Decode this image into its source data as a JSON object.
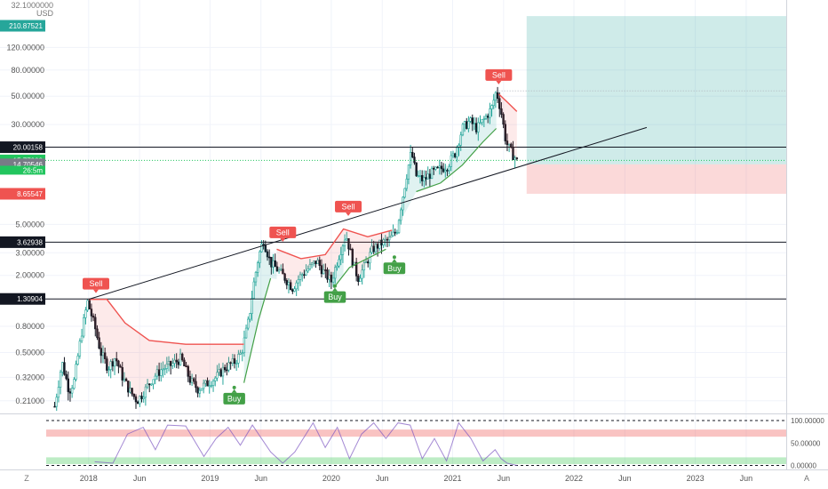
{
  "currency_header": {
    "line1": "32.1000000",
    "line2": "USD"
  },
  "chart_data": {
    "type": "line",
    "scale": "log",
    "ylim": [
      0.17,
      260
    ],
    "price_ticks": [
      {
        "value": 120,
        "label": "120.00000"
      },
      {
        "value": 80,
        "label": "80.00000"
      },
      {
        "value": 50,
        "label": "50.00000"
      },
      {
        "value": 30,
        "label": "30.00000"
      },
      {
        "value": 5,
        "label": "5.00000"
      },
      {
        "value": 3,
        "label": "3.00000"
      },
      {
        "value": 2,
        "label": "2.00000"
      },
      {
        "value": 0.8,
        "label": "0.80000"
      },
      {
        "value": 0.5,
        "label": "0.50000"
      },
      {
        "value": 0.32,
        "label": "0.32000"
      },
      {
        "value": 0.21,
        "label": "0.21000"
      }
    ],
    "price_badges": [
      {
        "value": 210.87521,
        "label": "210.87521",
        "color": "#26a69a"
      },
      {
        "value": 20.00158,
        "label": "20.00158",
        "color": "#131722"
      },
      {
        "value": 15.77,
        "label": "15.77000",
        "color": "#22c55e"
      },
      {
        "value": 14.70546,
        "label": "14.70546",
        "color": "#787b86"
      },
      {
        "value": 8.65547,
        "label": "8.65547",
        "color": "#ef5350"
      },
      {
        "value": 3.62938,
        "label": "3.62938",
        "color": "#131722"
      },
      {
        "value": 1.30904,
        "label": "1.30904",
        "color": "#131722"
      }
    ],
    "countdown": "26:5m",
    "horizontal_levels": [
      20.00158,
      3.62938,
      1.30904
    ],
    "x_labels": [
      {
        "t": 2018.0,
        "label": "2018"
      },
      {
        "t": 2018.42,
        "label": "Jun"
      },
      {
        "t": 2019.0,
        "label": "2019"
      },
      {
        "t": 2019.42,
        "label": "Jun"
      },
      {
        "t": 2020.0,
        "label": "2020"
      },
      {
        "t": 2020.42,
        "label": "Jun"
      },
      {
        "t": 2021.0,
        "label": "2021"
      },
      {
        "t": 2021.42,
        "label": "Jun"
      },
      {
        "t": 2022.0,
        "label": "2022"
      },
      {
        "t": 2022.42,
        "label": "Jun"
      },
      {
        "t": 2023.0,
        "label": "2023"
      },
      {
        "t": 2023.42,
        "label": "Jun"
      }
    ],
    "price_series": [
      [
        2017.72,
        0.19
      ],
      [
        2017.78,
        0.42
      ],
      [
        2017.84,
        0.25
      ],
      [
        2017.88,
        0.3
      ],
      [
        2017.94,
        0.7
      ],
      [
        2017.99,
        1.25
      ],
      [
        2018.05,
        0.8
      ],
      [
        2018.1,
        0.5
      ],
      [
        2018.16,
        0.38
      ],
      [
        2018.22,
        0.46
      ],
      [
        2018.28,
        0.32
      ],
      [
        2018.34,
        0.25
      ],
      [
        2018.4,
        0.21
      ],
      [
        2018.46,
        0.25
      ],
      [
        2018.52,
        0.31
      ],
      [
        2018.6,
        0.37
      ],
      [
        2018.68,
        0.4
      ],
      [
        2018.76,
        0.45
      ],
      [
        2018.84,
        0.3
      ],
      [
        2018.9,
        0.26
      ],
      [
        2018.96,
        0.28
      ],
      [
        2019.05,
        0.32
      ],
      [
        2019.12,
        0.38
      ],
      [
        2019.2,
        0.42
      ],
      [
        2019.26,
        0.5
      ],
      [
        2019.32,
        0.9
      ],
      [
        2019.36,
        1.7
      ],
      [
        2019.4,
        2.8
      ],
      [
        2019.44,
        3.8
      ],
      [
        2019.5,
        2.5
      ],
      [
        2019.56,
        2.2
      ],
      [
        2019.62,
        1.9
      ],
      [
        2019.68,
        1.6
      ],
      [
        2019.75,
        2.0
      ],
      [
        2019.82,
        2.3
      ],
      [
        2019.88,
        2.6
      ],
      [
        2019.94,
        2.1
      ],
      [
        2020.0,
        1.8
      ],
      [
        2020.06,
        2.8
      ],
      [
        2020.12,
        4.2
      ],
      [
        2020.18,
        2.5
      ],
      [
        2020.22,
        1.9
      ],
      [
        2020.28,
        2.4
      ],
      [
        2020.34,
        3.2
      ],
      [
        2020.42,
        3.6
      ],
      [
        2020.48,
        3.8
      ],
      [
        2020.54,
        4.5
      ],
      [
        2020.58,
        7.5
      ],
      [
        2020.62,
        12.0
      ],
      [
        2020.66,
        18.5
      ],
      [
        2020.7,
        12.0
      ],
      [
        2020.76,
        11.0
      ],
      [
        2020.82,
        12.5
      ],
      [
        2020.9,
        13.5
      ],
      [
        2020.96,
        14.5
      ],
      [
        2021.02,
        18.0
      ],
      [
        2021.08,
        28.0
      ],
      [
        2021.14,
        32.0
      ],
      [
        2021.2,
        28.0
      ],
      [
        2021.26,
        33.0
      ],
      [
        2021.32,
        40.0
      ],
      [
        2021.36,
        55.0
      ],
      [
        2021.4,
        38.0
      ],
      [
        2021.44,
        22.0
      ],
      [
        2021.48,
        18.5
      ],
      [
        2021.53,
        15.77
      ]
    ],
    "trend_line": [
      [
        2018.0,
        1.3
      ],
      [
        2022.6,
        28.5
      ]
    ],
    "supertrend_sell": [
      [
        2018.0,
        1.3
      ],
      [
        2018.15,
        1.3
      ],
      [
        2018.3,
        0.85
      ],
      [
        2018.5,
        0.62
      ],
      [
        2018.8,
        0.58
      ],
      [
        2019.28,
        0.58
      ],
      [
        2019.55,
        3.2
      ],
      [
        2019.75,
        2.7
      ],
      [
        2019.95,
        2.9
      ],
      [
        2020.1,
        4.6
      ],
      [
        2020.3,
        4.0
      ],
      [
        2020.5,
        4.5
      ],
      [
        2021.38,
        52.0
      ],
      [
        2021.45,
        45.0
      ],
      [
        2021.53,
        38.0
      ]
    ],
    "supertrend_buy": [
      [
        2019.28,
        0.29
      ],
      [
        2019.4,
        0.9
      ],
      [
        2019.5,
        1.9
      ],
      [
        2020.02,
        1.6
      ],
      [
        2020.15,
        2.3
      ],
      [
        2020.45,
        3.2
      ],
      [
        2020.7,
        9.0
      ],
      [
        2020.9,
        10.5
      ],
      [
        2021.08,
        14.5
      ],
      [
        2021.25,
        22.0
      ],
      [
        2021.36,
        28.0
      ]
    ],
    "signals": [
      {
        "label": "Sell",
        "type": "sell",
        "t": 2018.06,
        "value": 1.55
      },
      {
        "label": "Sell",
        "type": "sell",
        "t": 2019.6,
        "value": 3.9
      },
      {
        "label": "Sell",
        "type": "sell",
        "t": 2020.14,
        "value": 6.2
      },
      {
        "label": "Sell",
        "type": "sell",
        "t": 2021.38,
        "value": 66.0
      },
      {
        "label": "Buy",
        "type": "buy",
        "t": 2019.2,
        "value": 0.25
      },
      {
        "label": "Buy",
        "type": "buy",
        "t": 2020.03,
        "value": 1.55
      },
      {
        "label": "Buy",
        "type": "buy",
        "t": 2020.52,
        "value": 2.6
      }
    ],
    "position_tool": {
      "t_start": 2021.61,
      "t_end": 2024.2,
      "target": 210.87521,
      "entry": 14.70546,
      "stop": 8.65547
    },
    "oscillator": {
      "ylim": [
        -5,
        110
      ],
      "ticks": [
        {
          "value": 100,
          "label": "100.00000"
        },
        {
          "value": 50,
          "label": "50.00000"
        },
        {
          "value": 0,
          "label": "0.00000"
        }
      ],
      "series": [
        [
          2018.05,
          8
        ],
        [
          2018.2,
          5
        ],
        [
          2018.32,
          70
        ],
        [
          2018.45,
          85
        ],
        [
          2018.55,
          35
        ],
        [
          2018.65,
          90
        ],
        [
          2018.8,
          88
        ],
        [
          2018.95,
          20
        ],
        [
          2019.05,
          60
        ],
        [
          2019.15,
          85
        ],
        [
          2019.25,
          45
        ],
        [
          2019.35,
          90
        ],
        [
          2019.5,
          30
        ],
        [
          2019.6,
          5
        ],
        [
          2019.7,
          30
        ],
        [
          2019.85,
          95
        ],
        [
          2019.95,
          40
        ],
        [
          2020.05,
          85
        ],
        [
          2020.15,
          15
        ],
        [
          2020.25,
          70
        ],
        [
          2020.35,
          95
        ],
        [
          2020.45,
          60
        ],
        [
          2020.55,
          95
        ],
        [
          2020.65,
          90
        ],
        [
          2020.75,
          15
        ],
        [
          2020.85,
          60
        ],
        [
          2020.95,
          10
        ],
        [
          2021.05,
          95
        ],
        [
          2021.15,
          60
        ],
        [
          2021.25,
          10
        ],
        [
          2021.35,
          35
        ],
        [
          2021.4,
          15
        ],
        [
          2021.45,
          5
        ],
        [
          2021.53,
          0
        ]
      ]
    }
  },
  "footer": {
    "left_button": "Z",
    "right_button": "A"
  }
}
